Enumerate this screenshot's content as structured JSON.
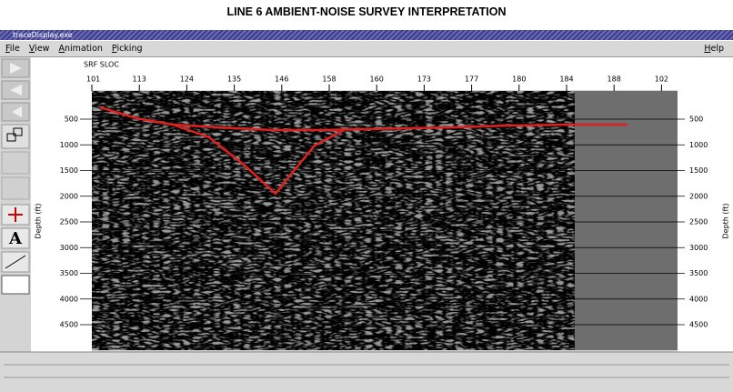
{
  "title": "LINE 6 AMBIENT-NOISE SURVEY INTERPRETATION",
  "window": {
    "title": "traceDisplay.exe",
    "menu": [
      "File",
      "View",
      "Animation",
      "Picking"
    ],
    "help": "Help"
  },
  "display": {
    "header_label": "SRF SLOC",
    "trace_labels": [
      101,
      113,
      124,
      135,
      146,
      158,
      160,
      173,
      177,
      180,
      184,
      188,
      102
    ],
    "depth_label": "Depth (ft)",
    "depth_ticks": [
      500,
      1000,
      1500,
      2000,
      2500,
      3000,
      3500,
      4000,
      4500
    ]
  }
}
